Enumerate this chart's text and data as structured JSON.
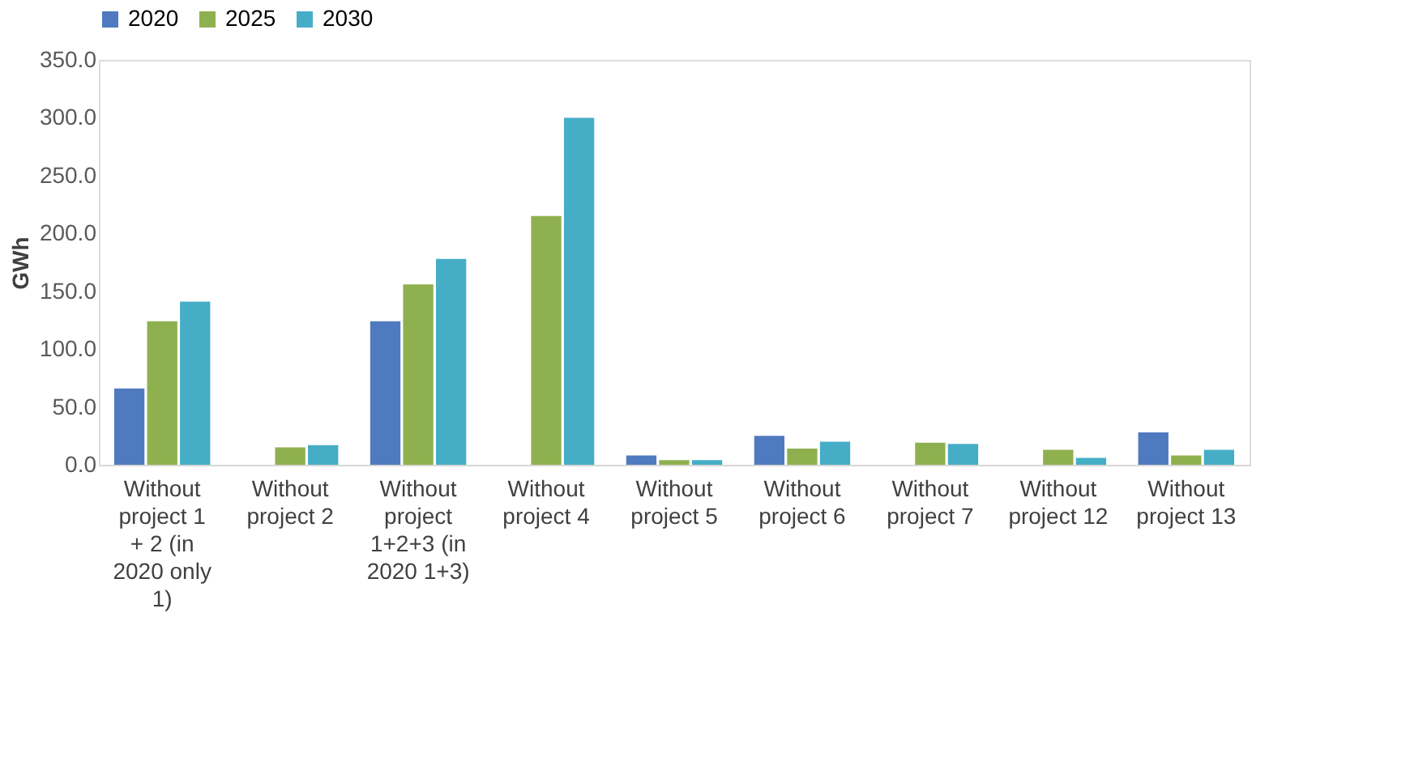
{
  "chart_data": {
    "type": "bar",
    "ylabel": "GWh",
    "legend": "top",
    "grid": false,
    "categories": [
      "Without project 1 + 2 (in 2020 only 1)",
      "Without project 2",
      "Without project 1+2+3 (in 2020 1+3)",
      "Without project 4",
      "Without project 5",
      "Without project 6",
      "Without project 7",
      "Without project 12",
      "Without project 13"
    ],
    "ylim": [
      0,
      350
    ],
    "yticks": [
      {
        "value": 0,
        "label": "0.0"
      },
      {
        "value": 50,
        "label": "50.0"
      },
      {
        "value": 100,
        "label": "100.0"
      },
      {
        "value": 150,
        "label": "150.0"
      },
      {
        "value": 200,
        "label": "200.0"
      },
      {
        "value": 250,
        "label": "250.0"
      },
      {
        "value": 300,
        "label": "300.0"
      },
      {
        "value": 350,
        "label": "350.0"
      }
    ],
    "series": [
      {
        "name": "2020",
        "color": "#4f7ac0",
        "values": [
          66,
          null,
          124,
          null,
          8,
          25,
          null,
          null,
          28
        ]
      },
      {
        "name": "2025",
        "color": "#8fb04f",
        "values": [
          124,
          15,
          156,
          215,
          4,
          14,
          19,
          13,
          8
        ]
      },
      {
        "name": "2030",
        "color": "#45aec6",
        "values": [
          141,
          17,
          178,
          300,
          4,
          20,
          18,
          6,
          13
        ]
      }
    ]
  }
}
